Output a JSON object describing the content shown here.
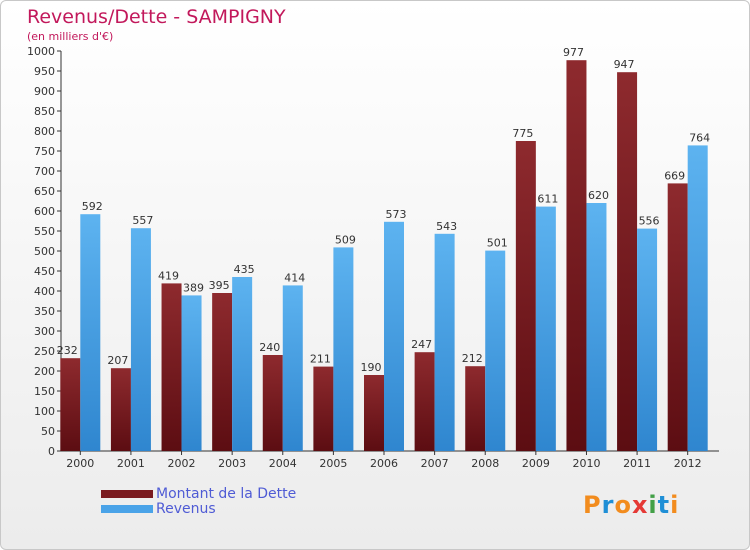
{
  "chart_data": {
    "type": "bar",
    "title": "Revenus/Dette - SAMPIGNY",
    "subtitle": "(en milliers d'€)",
    "categories": [
      "2000",
      "2001",
      "2002",
      "2003",
      "2004",
      "2005",
      "2006",
      "2007",
      "2008",
      "2009",
      "2010",
      "2011",
      "2012"
    ],
    "series": [
      {
        "name": "Montant de la Dette",
        "values": [
          232,
          207,
          419,
          395,
          240,
          211,
          190,
          247,
          212,
          775,
          977,
          947,
          669
        ],
        "color": "#7a1a1f"
      },
      {
        "name": "Revenus",
        "values": [
          592,
          557,
          389,
          435,
          414,
          509,
          573,
          543,
          501,
          611,
          620,
          556,
          764
        ],
        "color": "#4aa3e8"
      }
    ],
    "ylim": [
      0,
      1000
    ],
    "ystep": 50,
    "grid": false
  },
  "logo": {
    "text": "Proxiti",
    "letters": [
      {
        "ch": "P",
        "color": "#f28c1e"
      },
      {
        "ch": "r",
        "color": "#1f8fd6"
      },
      {
        "ch": "o",
        "color": "#f28c1e"
      },
      {
        "ch": "x",
        "color": "#e53935"
      },
      {
        "ch": "i",
        "color": "#43a047"
      },
      {
        "ch": "t",
        "color": "#1f8fd6"
      },
      {
        "ch": "i",
        "color": "#f28c1e"
      }
    ]
  }
}
